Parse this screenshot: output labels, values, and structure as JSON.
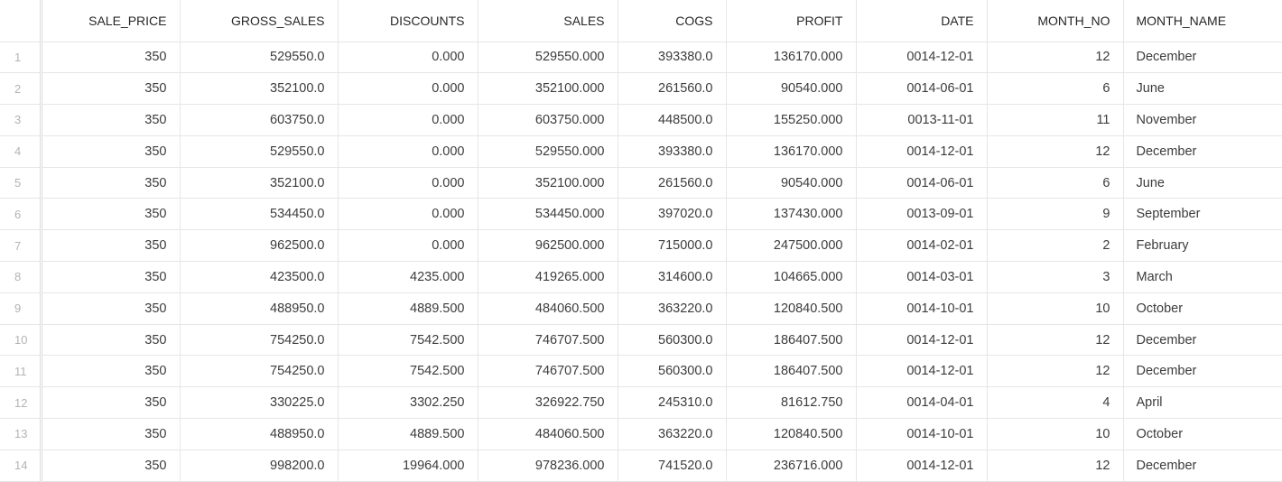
{
  "columns": [
    {
      "key": "SALE_PRICE",
      "label": "SALE_PRICE",
      "align": "right"
    },
    {
      "key": "GROSS_SALES",
      "label": "GROSS_SALES",
      "align": "right"
    },
    {
      "key": "DISCOUNTS",
      "label": "DISCOUNTS",
      "align": "right"
    },
    {
      "key": "SALES",
      "label": "SALES",
      "align": "right"
    },
    {
      "key": "COGS",
      "label": "COGS",
      "align": "right"
    },
    {
      "key": "PROFIT",
      "label": "PROFIT",
      "align": "right"
    },
    {
      "key": "DATE",
      "label": "DATE",
      "align": "right"
    },
    {
      "key": "MONTH_NO",
      "label": "MONTH_NO",
      "align": "right"
    },
    {
      "key": "MONTH_NAME",
      "label": "MONTH_NAME",
      "align": "left"
    }
  ],
  "rows": [
    {
      "num": "1",
      "cells": [
        "350",
        "529550.0",
        "0.000",
        "529550.000",
        "393380.0",
        "136170.000",
        "0014-12-01",
        "12",
        "December"
      ]
    },
    {
      "num": "2",
      "cells": [
        "350",
        "352100.0",
        "0.000",
        "352100.000",
        "261560.0",
        "90540.000",
        "0014-06-01",
        "6",
        "June"
      ]
    },
    {
      "num": "3",
      "cells": [
        "350",
        "603750.0",
        "0.000",
        "603750.000",
        "448500.0",
        "155250.000",
        "0013-11-01",
        "11",
        "November"
      ]
    },
    {
      "num": "4",
      "cells": [
        "350",
        "529550.0",
        "0.000",
        "529550.000",
        "393380.0",
        "136170.000",
        "0014-12-01",
        "12",
        "December"
      ]
    },
    {
      "num": "5",
      "cells": [
        "350",
        "352100.0",
        "0.000",
        "352100.000",
        "261560.0",
        "90540.000",
        "0014-06-01",
        "6",
        "June"
      ]
    },
    {
      "num": "6",
      "cells": [
        "350",
        "534450.0",
        "0.000",
        "534450.000",
        "397020.0",
        "137430.000",
        "0013-09-01",
        "9",
        "September"
      ]
    },
    {
      "num": "7",
      "cells": [
        "350",
        "962500.0",
        "0.000",
        "962500.000",
        "715000.0",
        "247500.000",
        "0014-02-01",
        "2",
        "February"
      ]
    },
    {
      "num": "8",
      "cells": [
        "350",
        "423500.0",
        "4235.000",
        "419265.000",
        "314600.0",
        "104665.000",
        "0014-03-01",
        "3",
        "March"
      ]
    },
    {
      "num": "9",
      "cells": [
        "350",
        "488950.0",
        "4889.500",
        "484060.500",
        "363220.0",
        "120840.500",
        "0014-10-01",
        "10",
        "October"
      ]
    },
    {
      "num": "10",
      "cells": [
        "350",
        "754250.0",
        "7542.500",
        "746707.500",
        "560300.0",
        "186407.500",
        "0014-12-01",
        "12",
        "December"
      ]
    },
    {
      "num": "11",
      "cells": [
        "350",
        "754250.0",
        "7542.500",
        "746707.500",
        "560300.0",
        "186407.500",
        "0014-12-01",
        "12",
        "December"
      ]
    },
    {
      "num": "12",
      "cells": [
        "350",
        "330225.0",
        "3302.250",
        "326922.750",
        "245310.0",
        "81612.750",
        "0014-04-01",
        "4",
        "April"
      ]
    },
    {
      "num": "13",
      "cells": [
        "350",
        "488950.0",
        "4889.500",
        "484060.500",
        "363220.0",
        "120840.500",
        "0014-10-01",
        "10",
        "October"
      ]
    },
    {
      "num": "14",
      "cells": [
        "350",
        "998200.0",
        "19964.000",
        "978236.000",
        "741520.0",
        "236716.000",
        "0014-12-01",
        "12",
        "December"
      ]
    }
  ]
}
